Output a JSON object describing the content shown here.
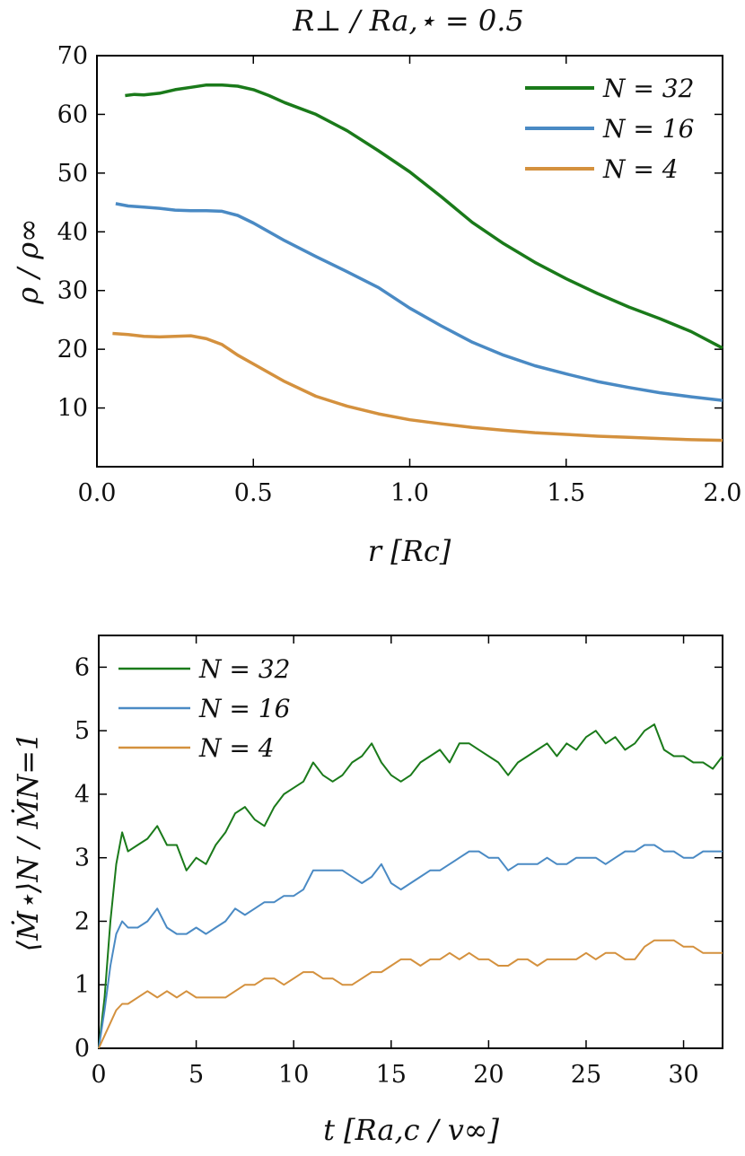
{
  "chart_data": [
    {
      "type": "line",
      "title": "R⊥ / Ra,⋆ = 0.5",
      "xlabel": "r [Rc]",
      "ylabel": "ρ / ρ∞",
      "xlim": [
        0.0,
        2.0
      ],
      "ylim": [
        0,
        70
      ],
      "xticks": [
        0.0,
        0.5,
        1.0,
        1.5,
        2.0
      ],
      "xtick_labels": [
        "0.0",
        "0.5",
        "1.0",
        "1.5",
        "2.0"
      ],
      "yticks": [
        10,
        20,
        30,
        40,
        50,
        60,
        70
      ],
      "ytick_labels": [
        "10",
        "20",
        "30",
        "40",
        "50",
        "60",
        "70"
      ],
      "legend_position": "top-right",
      "series": [
        {
          "name": "N = 32",
          "color": "#1a7a1a",
          "x": [
            0.09,
            0.12,
            0.15,
            0.2,
            0.25,
            0.3,
            0.35,
            0.4,
            0.45,
            0.5,
            0.55,
            0.6,
            0.7,
            0.8,
            0.9,
            1.0,
            1.1,
            1.2,
            1.3,
            1.4,
            1.5,
            1.6,
            1.7,
            1.8,
            1.9,
            2.0
          ],
          "y": [
            63.2,
            63.4,
            63.3,
            63.6,
            64.2,
            64.6,
            65.0,
            65.0,
            64.8,
            64.2,
            63.2,
            62.0,
            60.0,
            57.2,
            53.8,
            50.2,
            46.0,
            41.6,
            38.0,
            34.8,
            32.0,
            29.5,
            27.2,
            25.2,
            23.0,
            20.2
          ]
        },
        {
          "name": "N = 16",
          "color": "#4a8ac4",
          "x": [
            0.06,
            0.1,
            0.15,
            0.2,
            0.25,
            0.3,
            0.35,
            0.4,
            0.45,
            0.5,
            0.6,
            0.7,
            0.8,
            0.9,
            1.0,
            1.1,
            1.2,
            1.3,
            1.4,
            1.5,
            1.6,
            1.7,
            1.8,
            1.9,
            2.0
          ],
          "y": [
            44.8,
            44.4,
            44.2,
            44.0,
            43.7,
            43.6,
            43.6,
            43.5,
            42.8,
            41.5,
            38.5,
            35.8,
            33.2,
            30.5,
            27.0,
            24.0,
            21.2,
            19.0,
            17.2,
            15.8,
            14.5,
            13.5,
            12.6,
            11.9,
            11.3
          ]
        },
        {
          "name": "N = 4",
          "color": "#d4913e",
          "x": [
            0.05,
            0.1,
            0.15,
            0.2,
            0.25,
            0.3,
            0.35,
            0.4,
            0.45,
            0.5,
            0.6,
            0.7,
            0.8,
            0.9,
            1.0,
            1.1,
            1.2,
            1.3,
            1.4,
            1.5,
            1.6,
            1.7,
            1.8,
            1.9,
            2.0
          ],
          "y": [
            22.7,
            22.5,
            22.2,
            22.1,
            22.2,
            22.3,
            21.8,
            20.8,
            19.0,
            17.5,
            14.5,
            12.0,
            10.3,
            9.0,
            8.0,
            7.3,
            6.7,
            6.2,
            5.8,
            5.5,
            5.2,
            5.0,
            4.8,
            4.6,
            4.5
          ]
        }
      ]
    },
    {
      "type": "line",
      "title": "",
      "xlabel": "t [Ra,c / v∞]",
      "ylabel": "⟨Ṁ⋆⟩N / ṀN=1",
      "xlim": [
        0,
        32
      ],
      "ylim": [
        0,
        6.5
      ],
      "xticks": [
        0,
        5,
        10,
        15,
        20,
        25,
        30
      ],
      "xtick_labels": [
        "0",
        "5",
        "10",
        "15",
        "20",
        "25",
        "30"
      ],
      "yticks": [
        0,
        1,
        2,
        3,
        4,
        5,
        6
      ],
      "ytick_labels": [
        "0",
        "1",
        "2",
        "3",
        "4",
        "5",
        "6"
      ],
      "legend_position": "top-left",
      "series": [
        {
          "name": "N = 32",
          "color": "#1a7a1a",
          "x": [
            0,
            0.3,
            0.6,
            0.9,
            1.2,
            1.5,
            2,
            2.5,
            3,
            3.5,
            4,
            4.5,
            5,
            5.5,
            6,
            6.5,
            7,
            7.5,
            8,
            8.5,
            9,
            9.5,
            10,
            10.5,
            11,
            11.5,
            12,
            12.5,
            13,
            13.5,
            14,
            14.5,
            15,
            15.5,
            16,
            16.5,
            17,
            17.5,
            18,
            18.5,
            19,
            19.5,
            20,
            20.5,
            21,
            21.5,
            22,
            22.5,
            23,
            23.5,
            24,
            24.5,
            25,
            25.5,
            26,
            26.5,
            27,
            27.5,
            28,
            28.5,
            29,
            29.5,
            30,
            30.5,
            31,
            31.5,
            32
          ],
          "y": [
            0,
            0.8,
            2.0,
            2.9,
            3.4,
            3.1,
            3.2,
            3.3,
            3.5,
            3.2,
            3.2,
            2.8,
            3.0,
            2.9,
            3.2,
            3.4,
            3.7,
            3.8,
            3.6,
            3.5,
            3.8,
            4.0,
            4.1,
            4.2,
            4.5,
            4.3,
            4.2,
            4.3,
            4.5,
            4.6,
            4.8,
            4.5,
            4.3,
            4.2,
            4.3,
            4.5,
            4.6,
            4.7,
            4.5,
            4.8,
            4.8,
            4.7,
            4.6,
            4.5,
            4.3,
            4.5,
            4.6,
            4.7,
            4.8,
            4.6,
            4.8,
            4.7,
            4.9,
            5.0,
            4.8,
            4.9,
            4.7,
            4.8,
            5.0,
            5.1,
            4.7,
            4.6,
            4.6,
            4.5,
            4.5,
            4.4,
            4.6
          ]
        },
        {
          "name": "N = 16",
          "color": "#4a8ac4",
          "x": [
            0,
            0.3,
            0.6,
            0.9,
            1.2,
            1.5,
            2,
            2.5,
            3,
            3.5,
            4,
            4.5,
            5,
            5.5,
            6,
            6.5,
            7,
            7.5,
            8,
            8.5,
            9,
            9.5,
            10,
            10.5,
            11,
            11.5,
            12,
            12.5,
            13,
            13.5,
            14,
            14.5,
            15,
            15.5,
            16,
            16.5,
            17,
            17.5,
            18,
            18.5,
            19,
            19.5,
            20,
            20.5,
            21,
            21.5,
            22,
            22.5,
            23,
            23.5,
            24,
            24.5,
            25,
            25.5,
            26,
            26.5,
            27,
            27.5,
            28,
            28.5,
            29,
            29.5,
            30,
            30.5,
            31,
            31.5,
            32
          ],
          "y": [
            0,
            0.6,
            1.3,
            1.8,
            2.0,
            1.9,
            1.9,
            2.0,
            2.2,
            1.9,
            1.8,
            1.8,
            1.9,
            1.8,
            1.9,
            2.0,
            2.2,
            2.1,
            2.2,
            2.3,
            2.3,
            2.4,
            2.4,
            2.5,
            2.8,
            2.8,
            2.8,
            2.8,
            2.7,
            2.6,
            2.7,
            2.9,
            2.6,
            2.5,
            2.6,
            2.7,
            2.8,
            2.8,
            2.9,
            3.0,
            3.1,
            3.1,
            3.0,
            3.0,
            2.8,
            2.9,
            2.9,
            2.9,
            3.0,
            2.9,
            2.9,
            3.0,
            3.0,
            3.0,
            2.9,
            3.0,
            3.1,
            3.1,
            3.2,
            3.2,
            3.1,
            3.1,
            3.0,
            3.0,
            3.1,
            3.1,
            3.1
          ]
        },
        {
          "name": "N = 4",
          "color": "#d4913e",
          "x": [
            0,
            0.3,
            0.6,
            0.9,
            1.2,
            1.5,
            2,
            2.5,
            3,
            3.5,
            4,
            4.5,
            5,
            5.5,
            6,
            6.5,
            7,
            7.5,
            8,
            8.5,
            9,
            9.5,
            10,
            10.5,
            11,
            11.5,
            12,
            12.5,
            13,
            13.5,
            14,
            14.5,
            15,
            15.5,
            16,
            16.5,
            17,
            17.5,
            18,
            18.5,
            19,
            19.5,
            20,
            20.5,
            21,
            21.5,
            22,
            22.5,
            23,
            23.5,
            24,
            24.5,
            25,
            25.5,
            26,
            26.5,
            27,
            27.5,
            28,
            28.5,
            29,
            29.5,
            30,
            30.5,
            31,
            31.5,
            32
          ],
          "y": [
            0,
            0.2,
            0.4,
            0.6,
            0.7,
            0.7,
            0.8,
            0.9,
            0.8,
            0.9,
            0.8,
            0.9,
            0.8,
            0.8,
            0.8,
            0.8,
            0.9,
            1.0,
            1.0,
            1.1,
            1.1,
            1.0,
            1.1,
            1.2,
            1.2,
            1.1,
            1.1,
            1.0,
            1.0,
            1.1,
            1.2,
            1.2,
            1.3,
            1.4,
            1.4,
            1.3,
            1.4,
            1.4,
            1.5,
            1.4,
            1.5,
            1.4,
            1.4,
            1.3,
            1.3,
            1.4,
            1.4,
            1.3,
            1.4,
            1.4,
            1.4,
            1.4,
            1.5,
            1.4,
            1.5,
            1.5,
            1.4,
            1.4,
            1.6,
            1.7,
            1.7,
            1.7,
            1.6,
            1.6,
            1.5,
            1.5,
            1.5
          ]
        }
      ]
    }
  ]
}
